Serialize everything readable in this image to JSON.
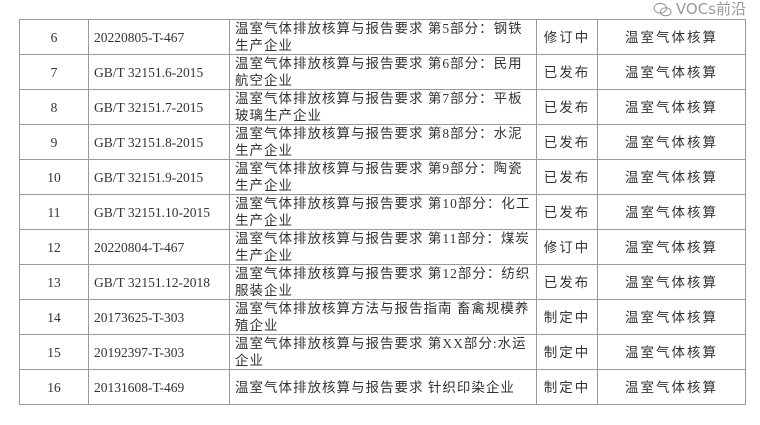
{
  "rows": [
    {
      "no": "6",
      "code": "20220805-T-467",
      "name": "温室气体排放核算与报告要求 第5部分：钢铁生产企业",
      "status": "修订中",
      "category": "温室气体核算"
    },
    {
      "no": "7",
      "code": "GB/T 32151.6-2015",
      "name": "温室气体排放核算与报告要求 第6部分：民用航空企业",
      "status": "已发布",
      "category": "温室气体核算"
    },
    {
      "no": "8",
      "code": "GB/T 32151.7-2015",
      "name": "温室气体排放核算与报告要求 第7部分：平板玻璃生产企业",
      "status": "已发布",
      "category": "温室气体核算"
    },
    {
      "no": "9",
      "code": "GB/T 32151.8-2015",
      "name": "温室气体排放核算与报告要求 第8部分：水泥生产企业",
      "status": "已发布",
      "category": "温室气体核算"
    },
    {
      "no": "10",
      "code": "GB/T 32151.9-2015",
      "name": "温室气体排放核算与报告要求 第9部分：陶瓷生产企业",
      "status": "已发布",
      "category": "温室气体核算"
    },
    {
      "no": "11",
      "code": "GB/T 32151.10-2015",
      "name": "温室气体排放核算与报告要求 第10部分：化工生产企业",
      "status": "已发布",
      "category": "温室气体核算"
    },
    {
      "no": "12",
      "code": "20220804-T-467",
      "name": "温室气体排放核算与报告要求 第11部分：煤炭生产企业",
      "status": "修订中",
      "category": "温室气体核算"
    },
    {
      "no": "13",
      "code": "GB/T 32151.12-2018",
      "name": "温室气体排放核算与报告要求 第12部分：纺织服装企业",
      "status": "已发布",
      "category": "温室气体核算"
    },
    {
      "no": "14",
      "code": "20173625-T-303",
      "name": "温室气体排放核算方法与报告指南 畜禽规模养殖企业",
      "status": "制定中",
      "category": "温室气体核算"
    },
    {
      "no": "15",
      "code": "20192397-T-303",
      "name": "温室气体排放核算与报告要求 第XX部分:水运企业",
      "status": "制定中",
      "category": "温室气体核算"
    },
    {
      "no": "16",
      "code": "20131608-T-469",
      "name": "温室气体排放核算与报告要求 针织印染企业",
      "status": "制定中",
      "category": "温室气体核算"
    }
  ],
  "watermark": {
    "text": "VOCs前沿",
    "icon": "wechat-icon"
  }
}
